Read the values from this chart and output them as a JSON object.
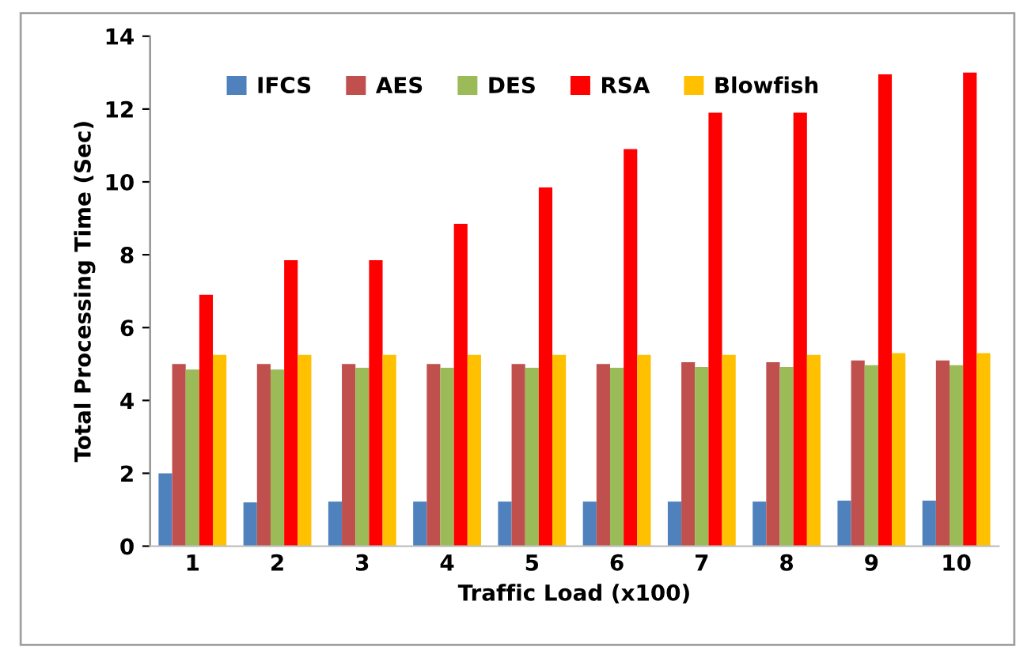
{
  "chart_data": {
    "type": "bar",
    "xlabel": "Traffic Load (x100)",
    "ylabel": "Total Processing Time (Sec)",
    "categories": [
      "1",
      "2",
      "3",
      "4",
      "5",
      "6",
      "7",
      "8",
      "9",
      "10"
    ],
    "series": [
      {
        "name": "IFCS",
        "color": "#4f81bd",
        "values": [
          2.0,
          1.2,
          1.22,
          1.22,
          1.22,
          1.22,
          1.22,
          1.22,
          1.25,
          1.25
        ]
      },
      {
        "name": "AES",
        "color": "#c0504d",
        "values": [
          5.0,
          5.0,
          5.0,
          5.0,
          5.0,
          5.0,
          5.05,
          5.05,
          5.1,
          5.1
        ]
      },
      {
        "name": "DES",
        "color": "#9bbb59",
        "values": [
          4.85,
          4.85,
          4.9,
          4.9,
          4.9,
          4.9,
          4.92,
          4.92,
          4.97,
          4.97
        ]
      },
      {
        "name": "RSA",
        "color": "#ff0000",
        "values": [
          6.9,
          7.85,
          7.85,
          8.85,
          9.85,
          10.9,
          11.9,
          11.9,
          12.95,
          13.0
        ]
      },
      {
        "name": "Blowfish",
        "color": "#ffc000",
        "values": [
          5.25,
          5.25,
          5.25,
          5.25,
          5.25,
          5.25,
          5.25,
          5.25,
          5.3,
          5.3
        ]
      }
    ],
    "ylim": [
      0,
      14
    ],
    "yticks": [
      0,
      2,
      4,
      6,
      8,
      10,
      12,
      14
    ],
    "grid": false,
    "legend": "top"
  }
}
